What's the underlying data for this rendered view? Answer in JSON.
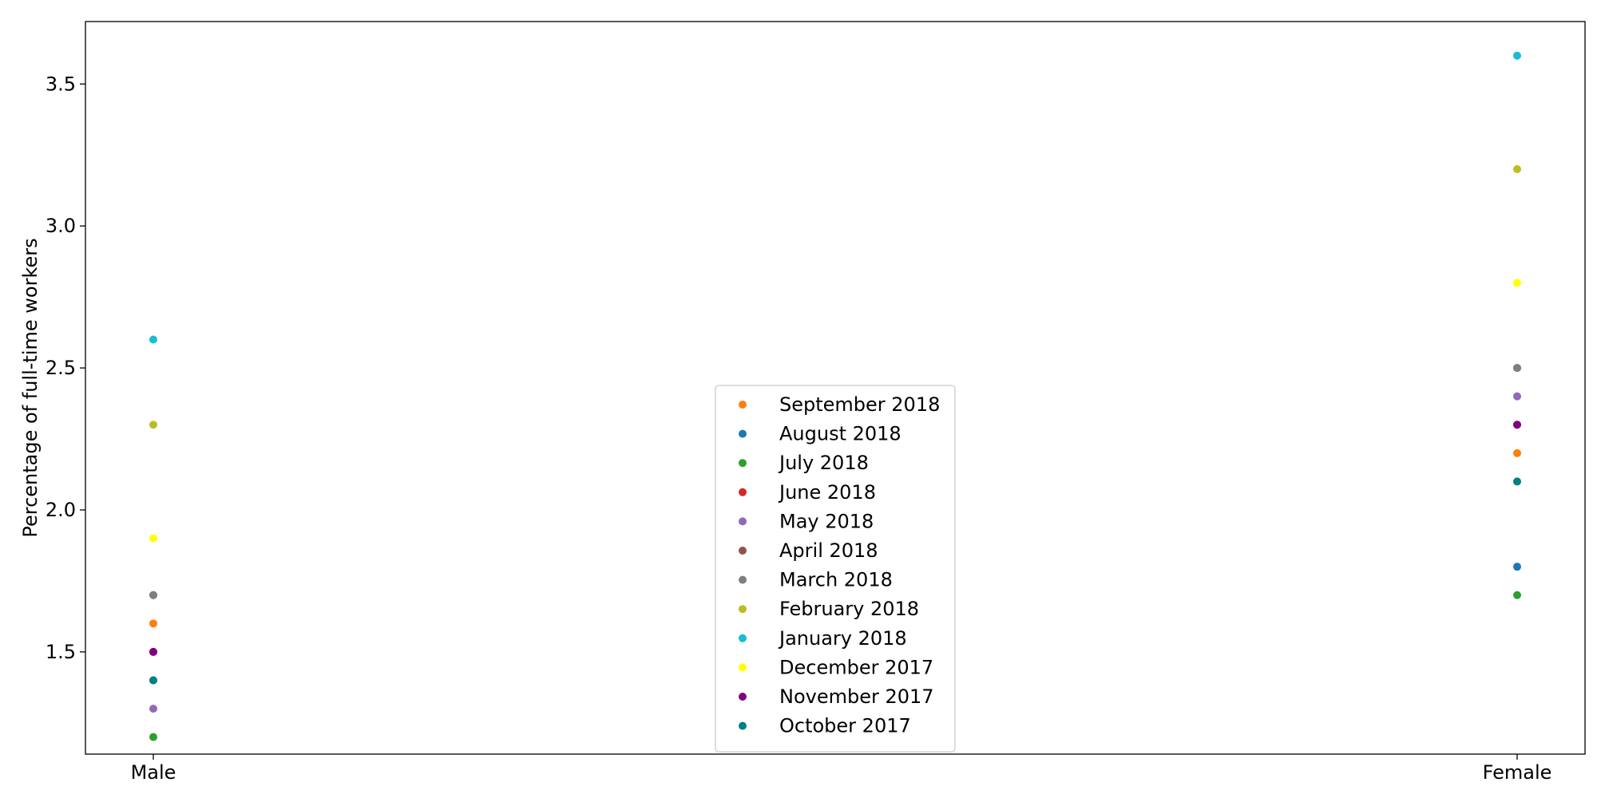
{
  "chart_data": {
    "type": "scatter",
    "title": "",
    "xlabel": "",
    "ylabel": "Percentage of full-time workers",
    "categories": [
      "Male",
      "Female"
    ],
    "ylim": [
      1.14,
      3.72
    ],
    "yticks": [
      1.5,
      2.0,
      2.5,
      3.0,
      3.5
    ],
    "ytick_labels": [
      "1.5",
      "2.0",
      "2.5",
      "3.0",
      "3.5"
    ],
    "grid": false,
    "legend_position": "bottom-center",
    "series": [
      {
        "name": "September 2018",
        "color": "#ff7f0e",
        "values": [
          1.6,
          2.2
        ]
      },
      {
        "name": "August 2018",
        "color": "#1f77b4",
        "values": [
          1.4,
          1.8
        ]
      },
      {
        "name": "July 2018",
        "color": "#2ca02c",
        "values": [
          1.2,
          1.7
        ]
      },
      {
        "name": "June 2018",
        "color": "#d62728",
        "values": [
          1.5,
          2.3
        ]
      },
      {
        "name": "May 2018",
        "color": "#9467bd",
        "values": [
          1.3,
          2.4
        ]
      },
      {
        "name": "April 2018",
        "color": "#8c564b",
        "values": [
          1.7,
          2.5
        ]
      },
      {
        "name": "March 2018",
        "color": "#7f7f7f",
        "values": [
          1.7,
          2.5
        ]
      },
      {
        "name": "February 2018",
        "color": "#bcbd22",
        "values": [
          2.3,
          3.2
        ]
      },
      {
        "name": "January 2018",
        "color": "#17becf",
        "values": [
          2.6,
          3.6
        ]
      },
      {
        "name": "December 2017",
        "color": "#ffff00",
        "values": [
          1.9,
          2.8
        ]
      },
      {
        "name": "November 2017",
        "color": "#800080",
        "values": [
          1.5,
          2.3
        ]
      },
      {
        "name": "October 2017",
        "color": "#008080",
        "values": [
          1.4,
          2.1
        ]
      }
    ]
  }
}
